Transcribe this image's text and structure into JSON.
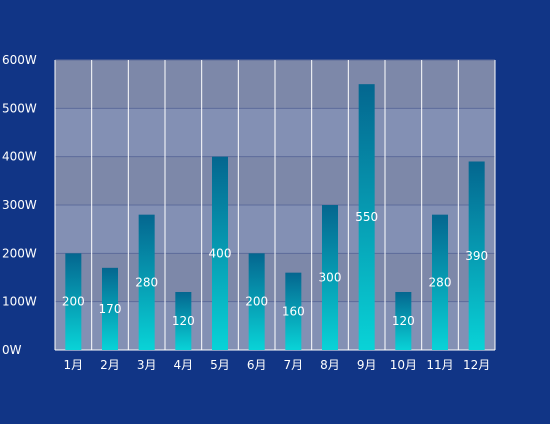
{
  "chart_data": {
    "type": "bar",
    "categories": [
      "1月",
      "2月",
      "3月",
      "4月",
      "5月",
      "6月",
      "7月",
      "8月",
      "9月",
      "10月",
      "11月",
      "12月"
    ],
    "values": [
      200,
      170,
      280,
      120,
      400,
      200,
      160,
      300,
      550,
      120,
      280,
      390
    ],
    "data_labels": [
      "200",
      "170",
      "280",
      "120",
      "400",
      "200",
      "160",
      "300",
      "550",
      "120",
      "280",
      "390"
    ],
    "y_ticks": [
      0,
      100,
      200,
      300,
      400,
      500,
      600
    ],
    "y_tick_labels": [
      "0W",
      "100W",
      "200W",
      "300W",
      "400W",
      "500W",
      "600W"
    ],
    "ylim": [
      0,
      600
    ],
    "title": "",
    "xlabel": "",
    "ylabel": "",
    "grid": true,
    "legend": "none",
    "colors": {
      "page_background": "#113586",
      "plot_band_light": "#8390b4",
      "plot_band_dark": "#7d88a9",
      "bar_top": "#04668f",
      "bar_bottom": "#09d3d7",
      "text": "#ffffff",
      "gridline": "#5d6b9b",
      "separator": "#ffffff"
    }
  }
}
